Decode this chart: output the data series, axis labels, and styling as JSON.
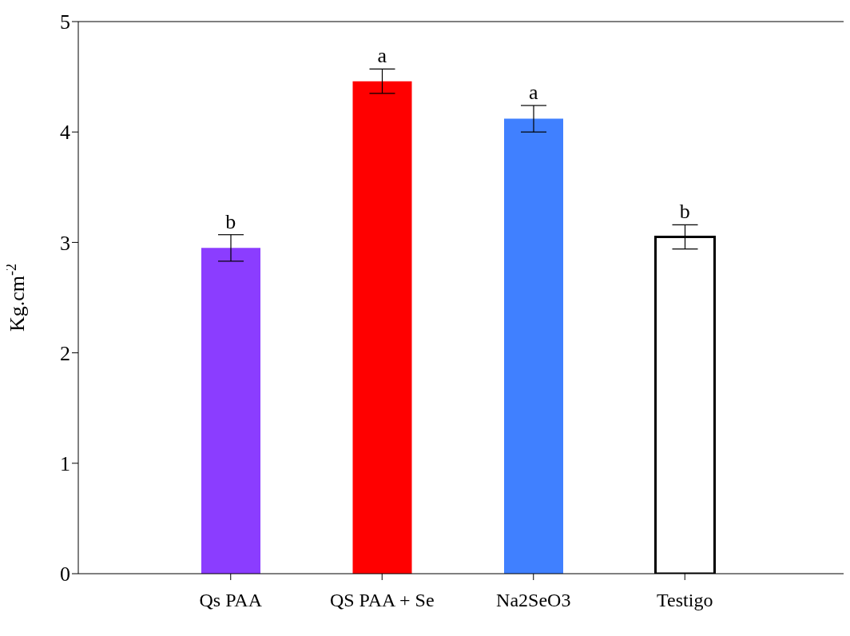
{
  "chart_data": {
    "type": "bar",
    "ylabel": "Kg.cm$^{-2}$",
    "categories": [
      "Qs PAA",
      "QS PAA + Se",
      "Na2SeO3",
      "Testigo"
    ],
    "values": [
      2.95,
      4.46,
      4.12,
      3.05
    ],
    "colors": [
      "#8b3dff",
      "#ff0000",
      "#4080ff",
      "#ffffff"
    ],
    "errors": [
      0.12,
      0.11,
      0.12,
      0.11
    ],
    "ylim": [
      0,
      5
    ],
    "yticks": [
      0,
      1,
      2,
      3,
      4,
      5
    ],
    "grid": false,
    "legend": false,
    "annotations": [
      {
        "text": "b",
        "x": "Qs PAA",
        "y": 3.07
      },
      {
        "text": "a",
        "x": "QS PAA + Se",
        "y": 4.57
      },
      {
        "text": "a",
        "x": "Na2SeO3",
        "y": 4.24
      },
      {
        "text": "b",
        "x": "Testigo",
        "y": 3.16
      }
    ]
  }
}
